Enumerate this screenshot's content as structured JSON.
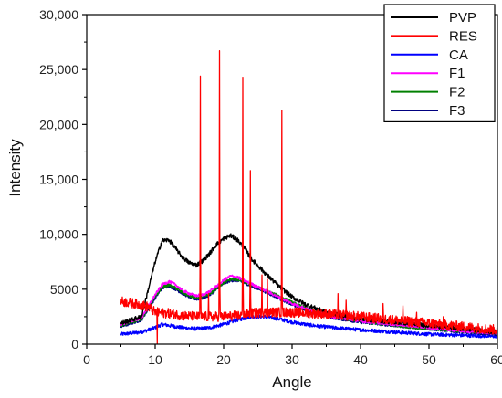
{
  "chart_data": {
    "type": "line",
    "title": "",
    "xlabel": "Angle",
    "ylabel": "Intensity",
    "xlim": [
      0,
      60
    ],
    "ylim": [
      0,
      30000
    ],
    "x_ticks": [
      0,
      10,
      20,
      30,
      40,
      50,
      60
    ],
    "y_ticks": [
      {
        "value": 0,
        "label": "0"
      },
      {
        "value": 5000,
        "label": "5000"
      },
      {
        "value": 10000,
        "label": "10,000"
      },
      {
        "value": 15000,
        "label": "15,000"
      },
      {
        "value": 20000,
        "label": "20,000"
      },
      {
        "value": 25000,
        "label": "25,000"
      },
      {
        "value": 30000,
        "label": "30,000"
      }
    ],
    "legend_position": "top-right",
    "grid": false,
    "series": [
      {
        "name": "PVP",
        "color": "#000000",
        "noise": 200,
        "points": [
          [
            5,
            1900
          ],
          [
            8,
            2500
          ],
          [
            10,
            7500
          ],
          [
            11,
            9400
          ],
          [
            12,
            9500
          ],
          [
            13,
            8700
          ],
          [
            14,
            7900
          ],
          [
            15,
            7400
          ],
          [
            16,
            7200
          ],
          [
            17,
            7600
          ],
          [
            18,
            8300
          ],
          [
            19,
            9100
          ],
          [
            20,
            9600
          ],
          [
            21,
            9900
          ],
          [
            22,
            9500
          ],
          [
            23,
            8800
          ],
          [
            24,
            7800
          ],
          [
            26,
            6500
          ],
          [
            28,
            5300
          ],
          [
            30,
            4300
          ],
          [
            32,
            3600
          ],
          [
            35,
            2900
          ],
          [
            40,
            2300
          ],
          [
            45,
            2000
          ],
          [
            50,
            1700
          ],
          [
            55,
            1400
          ],
          [
            60,
            1100
          ]
        ]
      },
      {
        "name": "RES",
        "color": "#ff0000",
        "noise": 450,
        "baseline": [
          [
            5,
            3900
          ],
          [
            7,
            3700
          ],
          [
            9,
            3400
          ],
          [
            10,
            2900
          ],
          [
            12,
            2800
          ],
          [
            14,
            2600
          ],
          [
            16,
            2500
          ],
          [
            18,
            2500
          ],
          [
            20,
            2500
          ],
          [
            22,
            2600
          ],
          [
            24,
            2800
          ],
          [
            26,
            2900
          ],
          [
            28,
            2900
          ],
          [
            30,
            2900
          ],
          [
            33,
            2800
          ],
          [
            36,
            2700
          ],
          [
            40,
            2500
          ],
          [
            45,
            2200
          ],
          [
            50,
            1900
          ],
          [
            55,
            1600
          ],
          [
            60,
            1300
          ]
        ],
        "peaks": [
          {
            "x": 16.6,
            "y": 24400
          },
          {
            "x": 19.4,
            "y": 26700
          },
          {
            "x": 22.8,
            "y": 24300
          },
          {
            "x": 23.9,
            "y": 15800
          },
          {
            "x": 28.5,
            "y": 21300
          },
          {
            "x": 10.3,
            "y": 0
          },
          {
            "x": 25.6,
            "y": 6300
          },
          {
            "x": 26.4,
            "y": 5900
          },
          {
            "x": 17.8,
            "y": 4600
          },
          {
            "x": 36.7,
            "y": 4600
          },
          {
            "x": 37.9,
            "y": 4000
          },
          {
            "x": 43.3,
            "y": 3700
          },
          {
            "x": 46.2,
            "y": 3500
          },
          {
            "x": 48.2,
            "y": 2900
          },
          {
            "x": 52.1,
            "y": 2500
          }
        ]
      },
      {
        "name": "CA",
        "color": "#0000ff",
        "noise": 160,
        "points": [
          [
            5,
            900
          ],
          [
            8,
            1100
          ],
          [
            10,
            1500
          ],
          [
            11,
            1800
          ],
          [
            12,
            1700
          ],
          [
            14,
            1500
          ],
          [
            16,
            1400
          ],
          [
            18,
            1500
          ],
          [
            20,
            1800
          ],
          [
            22,
            2200
          ],
          [
            24,
            2500
          ],
          [
            26,
            2500
          ],
          [
            28,
            2300
          ],
          [
            30,
            2000
          ],
          [
            33,
            1700
          ],
          [
            36,
            1500
          ],
          [
            40,
            1300
          ],
          [
            45,
            1100
          ],
          [
            50,
            900
          ],
          [
            55,
            800
          ],
          [
            60,
            700
          ]
        ]
      },
      {
        "name": "F1",
        "color": "#ff00ff",
        "noise": 130,
        "points": [
          [
            5,
            1800
          ],
          [
            8,
            2400
          ],
          [
            10,
            4500
          ],
          [
            11,
            5400
          ],
          [
            12,
            5700
          ],
          [
            13,
            5400
          ],
          [
            14,
            4900
          ],
          [
            15,
            4600
          ],
          [
            16,
            4400
          ],
          [
            17,
            4500
          ],
          [
            18,
            4800
          ],
          [
            19,
            5300
          ],
          [
            20,
            5800
          ],
          [
            21,
            6200
          ],
          [
            22,
            6100
          ],
          [
            23,
            5800
          ],
          [
            24,
            5500
          ],
          [
            26,
            4900
          ],
          [
            28,
            4300
          ],
          [
            30,
            3700
          ],
          [
            33,
            3000
          ],
          [
            36,
            2500
          ],
          [
            40,
            2100
          ],
          [
            45,
            1800
          ],
          [
            50,
            1500
          ],
          [
            55,
            1200
          ],
          [
            60,
            1000
          ]
        ]
      },
      {
        "name": "F2",
        "color": "#008000",
        "noise": 130,
        "points": [
          [
            5,
            1700
          ],
          [
            8,
            2300
          ],
          [
            10,
            4300
          ],
          [
            11,
            5200
          ],
          [
            12,
            5400
          ],
          [
            13,
            5100
          ],
          [
            14,
            4700
          ],
          [
            15,
            4400
          ],
          [
            16,
            4200
          ],
          [
            17,
            4300
          ],
          [
            18,
            4600
          ],
          [
            19,
            5100
          ],
          [
            20,
            5600
          ],
          [
            21,
            5900
          ],
          [
            22,
            5900
          ],
          [
            23,
            5700
          ],
          [
            24,
            5400
          ],
          [
            26,
            4900
          ],
          [
            28,
            4400
          ],
          [
            30,
            3800
          ],
          [
            33,
            3000
          ],
          [
            36,
            2500
          ],
          [
            40,
            2100
          ],
          [
            45,
            1700
          ],
          [
            50,
            1400
          ],
          [
            55,
            1200
          ],
          [
            60,
            1000
          ]
        ]
      },
      {
        "name": "F3",
        "color": "#000080",
        "noise": 130,
        "points": [
          [
            5,
            1600
          ],
          [
            8,
            2200
          ],
          [
            10,
            4200
          ],
          [
            11,
            5100
          ],
          [
            12,
            5300
          ],
          [
            13,
            5000
          ],
          [
            14,
            4600
          ],
          [
            15,
            4300
          ],
          [
            16,
            4100
          ],
          [
            17,
            4200
          ],
          [
            18,
            4500
          ],
          [
            19,
            5000
          ],
          [
            20,
            5500
          ],
          [
            21,
            5800
          ],
          [
            22,
            5800
          ],
          [
            23,
            5600
          ],
          [
            24,
            5300
          ],
          [
            26,
            4800
          ],
          [
            28,
            4200
          ],
          [
            30,
            3600
          ],
          [
            33,
            2900
          ],
          [
            36,
            2400
          ],
          [
            40,
            2000
          ],
          [
            45,
            1700
          ],
          [
            50,
            1400
          ],
          [
            55,
            1100
          ],
          [
            60,
            900
          ]
        ]
      }
    ]
  }
}
